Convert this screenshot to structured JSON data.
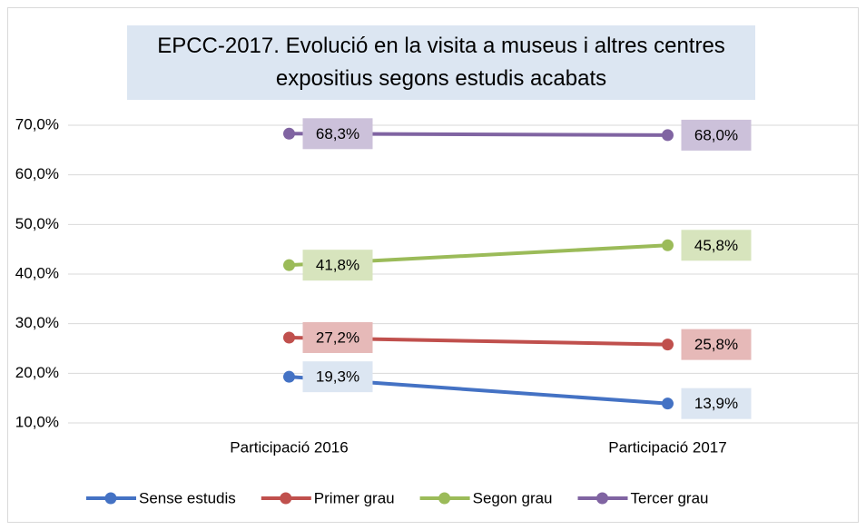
{
  "chart_data": {
    "type": "line",
    "title": "EPCC-2017. Evolució en la visita a museus i altres centres expositius segons estudis acabats",
    "categories": [
      "Participació 2016",
      "Participació 2017"
    ],
    "series": [
      {
        "name": "Sense estudis",
        "color": "#4472c4",
        "label_fill": "#dce6f2",
        "values": [
          19.3,
          13.9
        ],
        "value_labels": [
          "19,3%",
          "13,9%"
        ]
      },
      {
        "name": "Primer grau",
        "color": "#c0504d",
        "label_fill": "#e6b9b8",
        "values": [
          27.2,
          25.8
        ],
        "value_labels": [
          "27,2%",
          "25,8%"
        ]
      },
      {
        "name": "Segon grau",
        "color": "#9bbb59",
        "label_fill": "#d7e4bd",
        "values": [
          41.8,
          45.8
        ],
        "value_labels": [
          "41,8%",
          "45,8%"
        ]
      },
      {
        "name": "Tercer grau",
        "color": "#8064a2",
        "label_fill": "#ccc1da",
        "values": [
          68.3,
          68.0
        ],
        "value_labels": [
          "68,3%",
          "68,0%"
        ]
      }
    ],
    "ylim": [
      10,
      70
    ],
    "yticks": [
      {
        "value": 10,
        "label": "10,0%"
      },
      {
        "value": 20,
        "label": "20,0%"
      },
      {
        "value": 30,
        "label": "30,0%"
      },
      {
        "value": 40,
        "label": "40,0%"
      },
      {
        "value": 50,
        "label": "50,0%"
      },
      {
        "value": 60,
        "label": "60,0%"
      },
      {
        "value": 70,
        "label": "70,0%"
      }
    ],
    "grid": true,
    "legend": "bottom"
  }
}
